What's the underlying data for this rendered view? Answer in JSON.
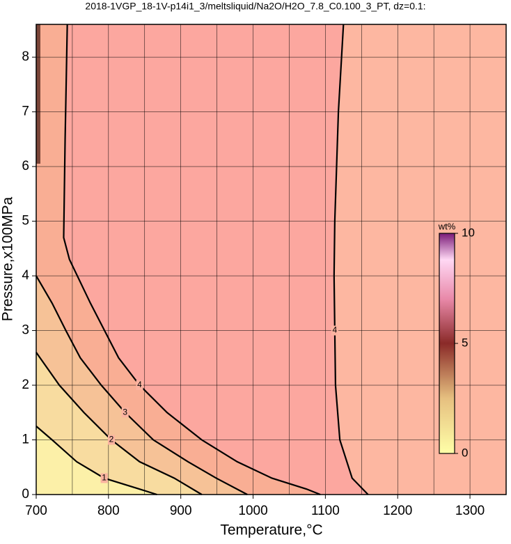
{
  "chart_data": {
    "type": "contour",
    "title": "2018-1VGP_18-1V-p14i1_3/meltsliquid/Na2O/H2O_7.8_C0.100_3_PT, dz=0.1:",
    "x_label": "Temperature,°C",
    "y_label": "Pressure,x100MPa",
    "xlim": [
      700,
      1350
    ],
    "xticks": [
      700,
      800,
      900,
      1000,
      1100,
      1200,
      1300
    ],
    "ylim": [
      0,
      8.6
    ],
    "yticks": [
      0,
      1,
      2,
      3,
      4,
      5,
      6,
      7,
      8
    ],
    "grid": true,
    "series": [
      {
        "name": "1",
        "color": "#000000",
        "x": [
          700,
          722,
          756,
          794,
          843,
          867
        ],
        "y": [
          1.25,
          1,
          0.6,
          0.3,
          0.1,
          0
        ]
      },
      {
        "name": "2",
        "color": "#000000",
        "x": [
          700,
          732,
          766,
          804,
          843,
          891,
          929
        ],
        "y": [
          2.6,
          2,
          1.5,
          1,
          0.6,
          0.3,
          0
        ]
      },
      {
        "name": "3",
        "color": "#000000",
        "x": [
          700,
          722,
          741,
          761,
          790,
          823,
          862,
          910,
          949,
          992
        ],
        "y": [
          4.0,
          3.5,
          3,
          2.5,
          2,
          1.5,
          1,
          0.6,
          0.3,
          0
        ]
      },
      {
        "name": "4",
        "color": "#000000",
        "x": [
          743,
          740,
          738,
          746,
          775,
          814,
          843,
          881,
          929,
          978,
          1026,
          1074,
          1093
        ],
        "y": [
          8.6,
          6.5,
          4.7,
          4.3,
          3.5,
          2.5,
          2,
          1.5,
          1,
          0.6,
          0.3,
          0.1,
          0
        ]
      },
      {
        "name": "4",
        "color": "#000000",
        "x": [
          1125,
          1118,
          1113,
          1112,
          1113,
          1114,
          1120,
          1137,
          1159
        ],
        "y": [
          8.6,
          7,
          5,
          4,
          3,
          2,
          1,
          0.3,
          0
        ]
      }
    ],
    "colorbar": {
      "label": "wt%",
      "lim": [
        0,
        10
      ],
      "ticks": [
        0,
        5,
        10
      ]
    }
  }
}
